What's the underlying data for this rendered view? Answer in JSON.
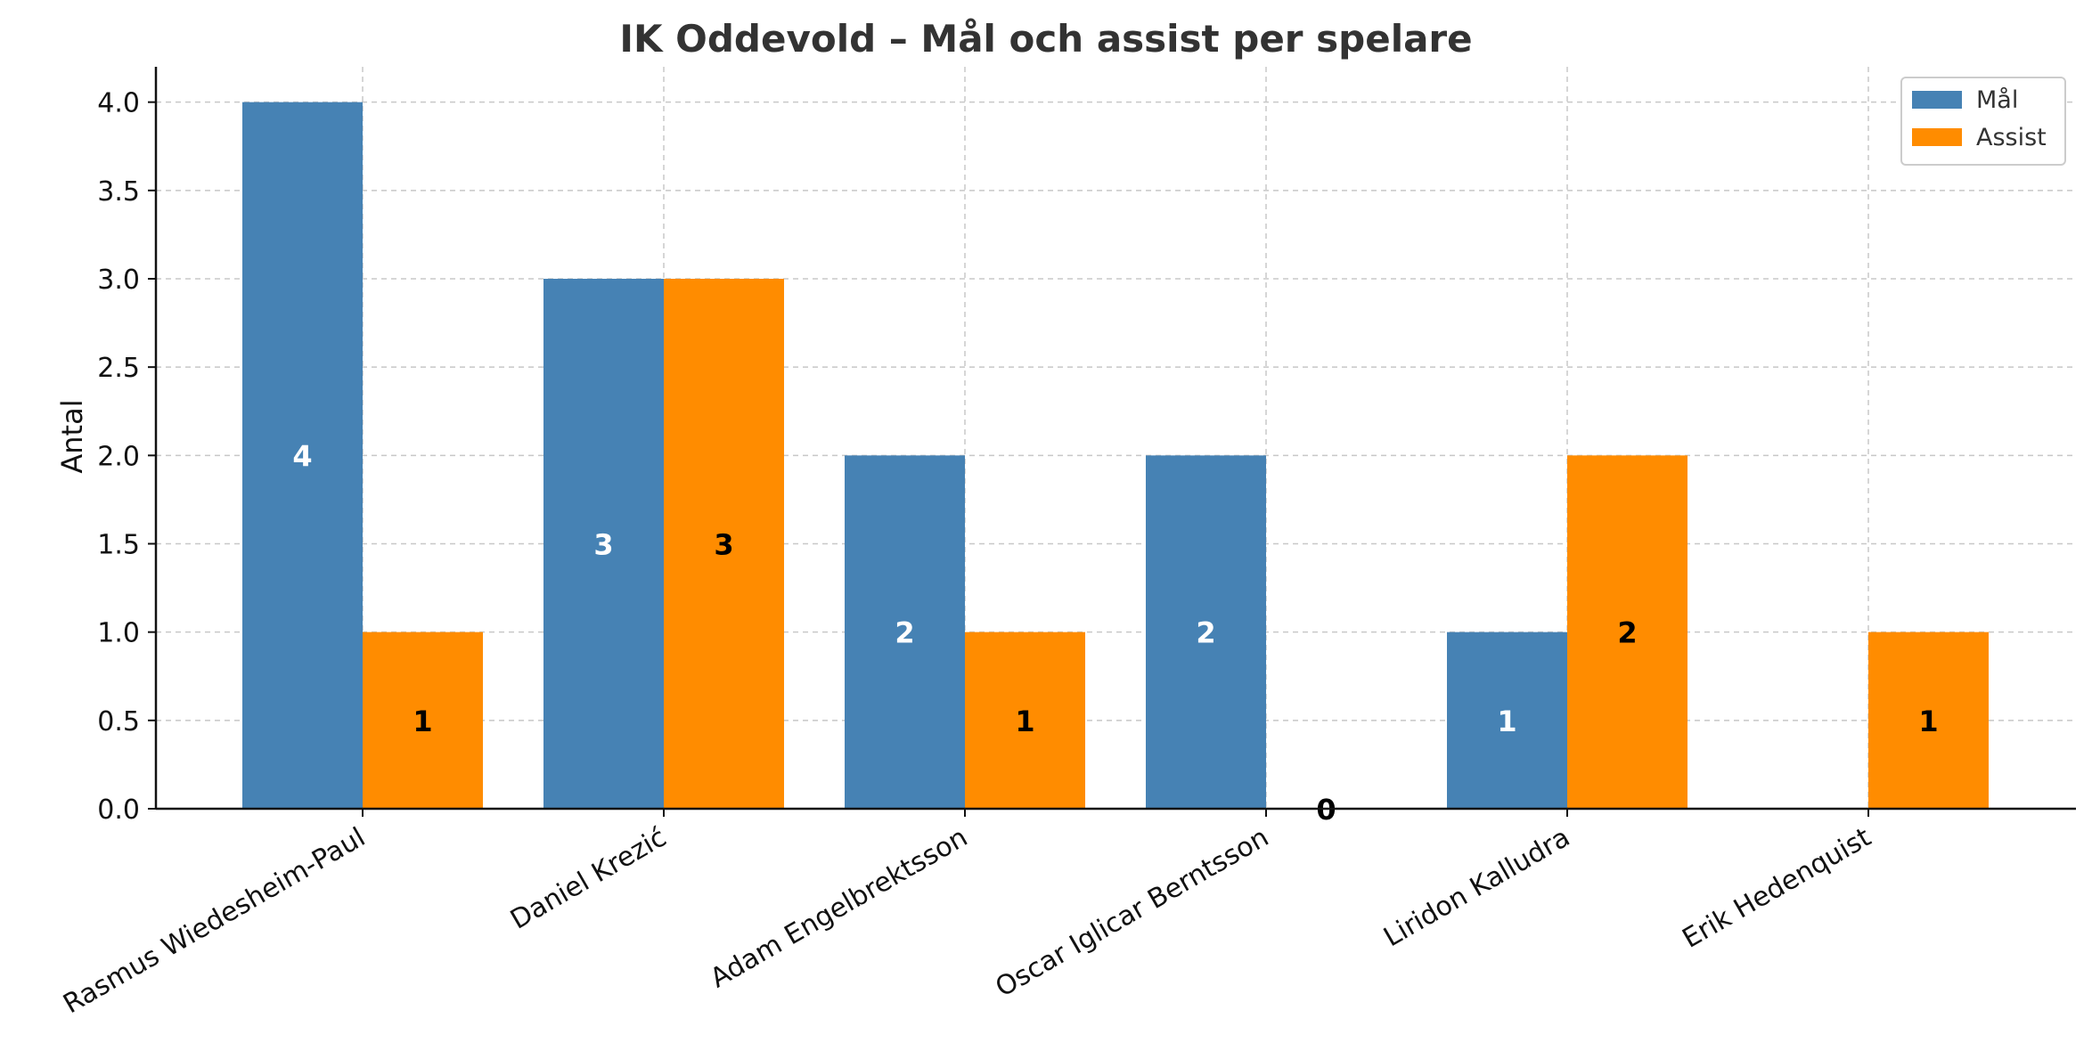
{
  "chart_data": {
    "type": "bar",
    "title": "IK Oddevold – Mål och assist per spelare",
    "xlabel": "",
    "ylabel": "Antal",
    "categories": [
      "Rasmus Wiedesheim-Paul",
      "Daniel Krezić",
      "Adam Engelbrektsson",
      "Oscar Iglicar Berntsson",
      "Liridon Kalludra",
      "Erik Hedenquist"
    ],
    "series": [
      {
        "name": "Mål",
        "values": [
          4,
          3,
          2,
          2,
          1,
          0
        ],
        "color": "#4682b4",
        "label_color": "#ffffff"
      },
      {
        "name": "Assist",
        "values": [
          1,
          3,
          1,
          0,
          2,
          1
        ],
        "color": "#ff8c00",
        "label_color": "#000000"
      }
    ],
    "ylim": [
      0,
      4.2
    ],
    "yticks": [
      0.0,
      0.5,
      1.0,
      1.5,
      2.0,
      2.5,
      3.0,
      3.5,
      4.0
    ],
    "ytick_labels": [
      "0.0",
      "0.5",
      "1.0",
      "1.5",
      "2.0",
      "2.5",
      "3.0",
      "3.5",
      "4.0"
    ],
    "grid": true,
    "legend_position": "top-right"
  }
}
